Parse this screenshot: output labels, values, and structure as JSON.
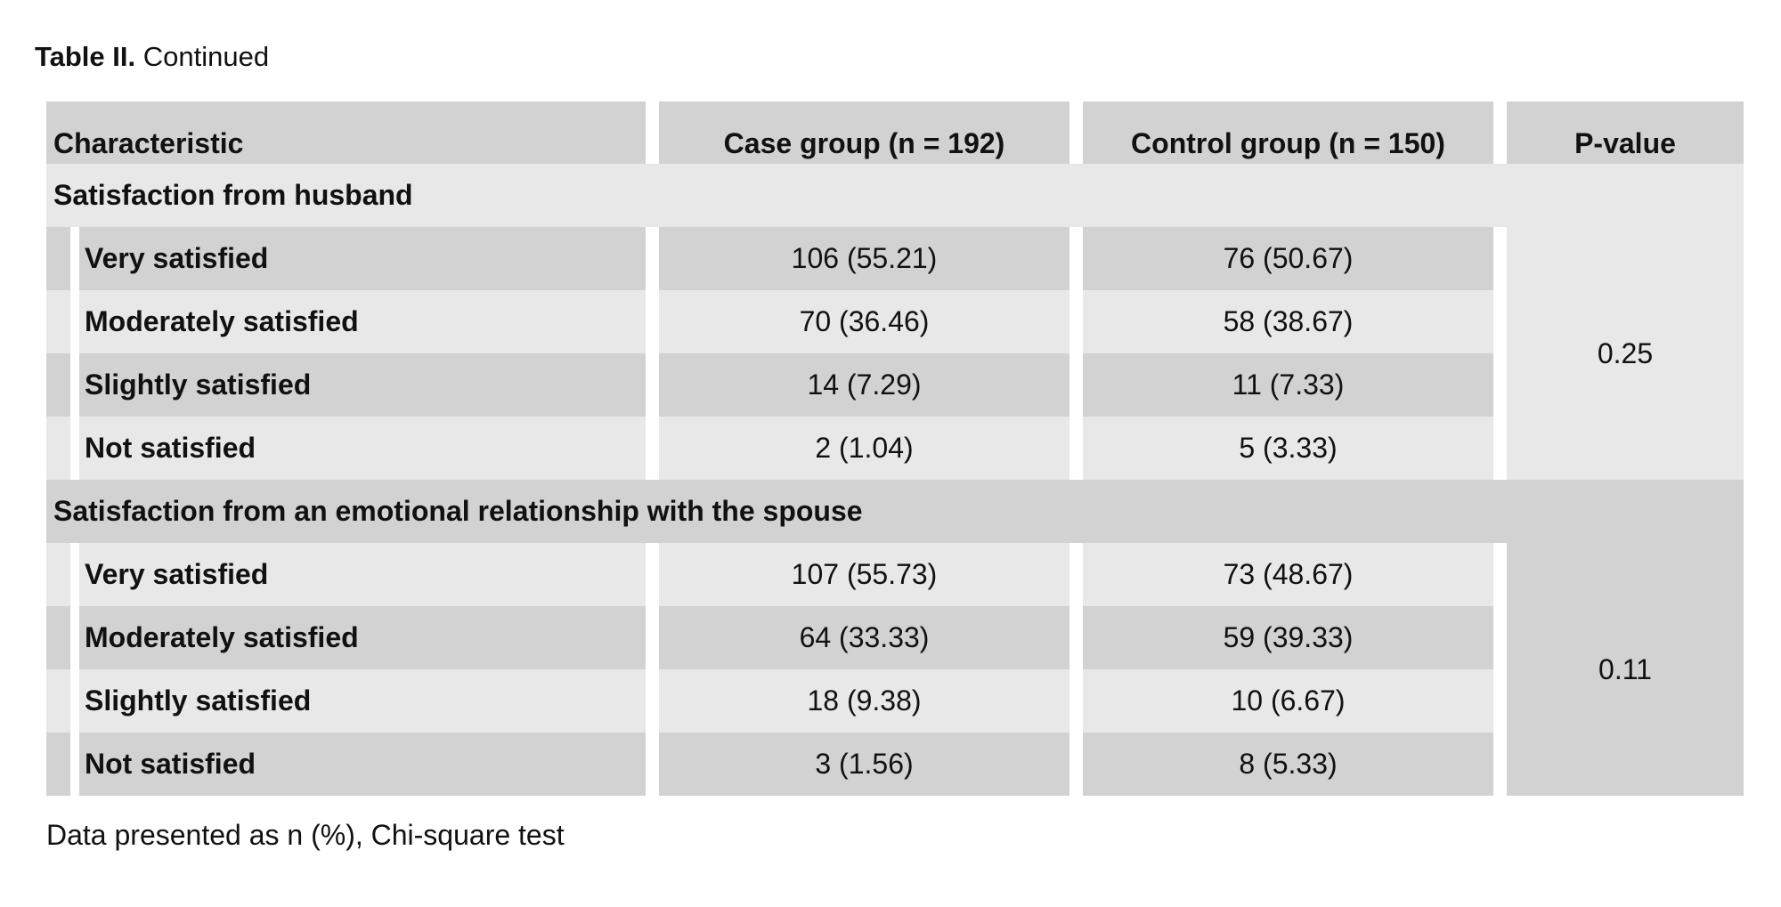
{
  "caption": {
    "label": "Table II.",
    "text": "Continued"
  },
  "headers": {
    "characteristic": "Characteristic",
    "case": "Case group (n = 192)",
    "control": "Control group (n = 150)",
    "pvalue": "P-value"
  },
  "sections": [
    {
      "title": "Satisfaction from husband",
      "p_value": "0.25",
      "rows": [
        {
          "label": "Very satisfied",
          "case": "106 (55.21)",
          "control": "76 (50.67)"
        },
        {
          "label": "Moderately satisfied",
          "case": "70 (36.46)",
          "control": "58 (38.67)"
        },
        {
          "label": "Slightly satisfied",
          "case": "14 (7.29)",
          "control": "11 (7.33)"
        },
        {
          "label": "Not satisfied",
          "case": "2 (1.04)",
          "control": "5 (3.33)"
        }
      ]
    },
    {
      "title": "Satisfaction from an emotional relationship with the spouse",
      "p_value": "0.11",
      "rows": [
        {
          "label": "Very satisfied",
          "case": "107 (55.73)",
          "control": "73 (48.67)"
        },
        {
          "label": "Moderately satisfied",
          "case": "64 (33.33)",
          "control": "59 (39.33)"
        },
        {
          "label": "Slightly satisfied",
          "case": "18 (9.38)",
          "control": "10 (6.67)"
        },
        {
          "label": "Not satisfied",
          "case": "3 (1.56)",
          "control": "8 (5.33)"
        }
      ]
    }
  ],
  "footnote": "Data presented as n (%), Chi-square test",
  "colors": {
    "dark_row": "#d2d2d2",
    "light_row": "#e8e8e8"
  }
}
